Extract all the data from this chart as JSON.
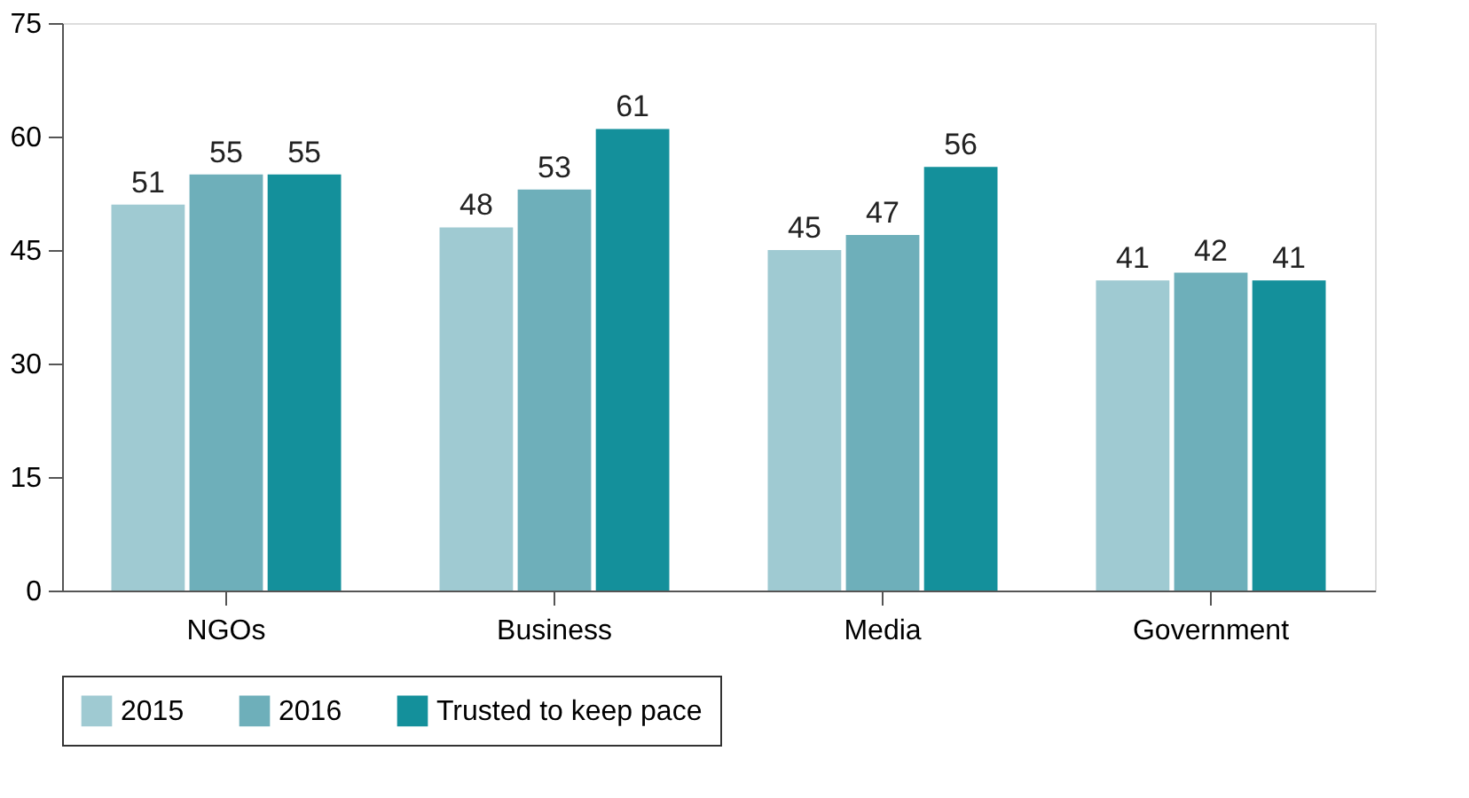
{
  "chart_data": {
    "type": "bar",
    "categories": [
      "NGOs",
      "Business",
      "Media",
      "Government"
    ],
    "series": [
      {
        "name": "2015",
        "color": "#9fcad2",
        "values": [
          51,
          48,
          45,
          41
        ]
      },
      {
        "name": "2016",
        "color": "#6eafba",
        "values": [
          55,
          53,
          47,
          42
        ]
      },
      {
        "name": "Trusted to keep pace",
        "color": "#14909b",
        "values": [
          55,
          61,
          56,
          41
        ]
      }
    ],
    "ylim": [
      0,
      75
    ],
    "yticks": [
      0,
      15,
      30,
      45,
      60,
      75
    ],
    "grid": false,
    "legend": "bottom",
    "data_labels": true
  }
}
